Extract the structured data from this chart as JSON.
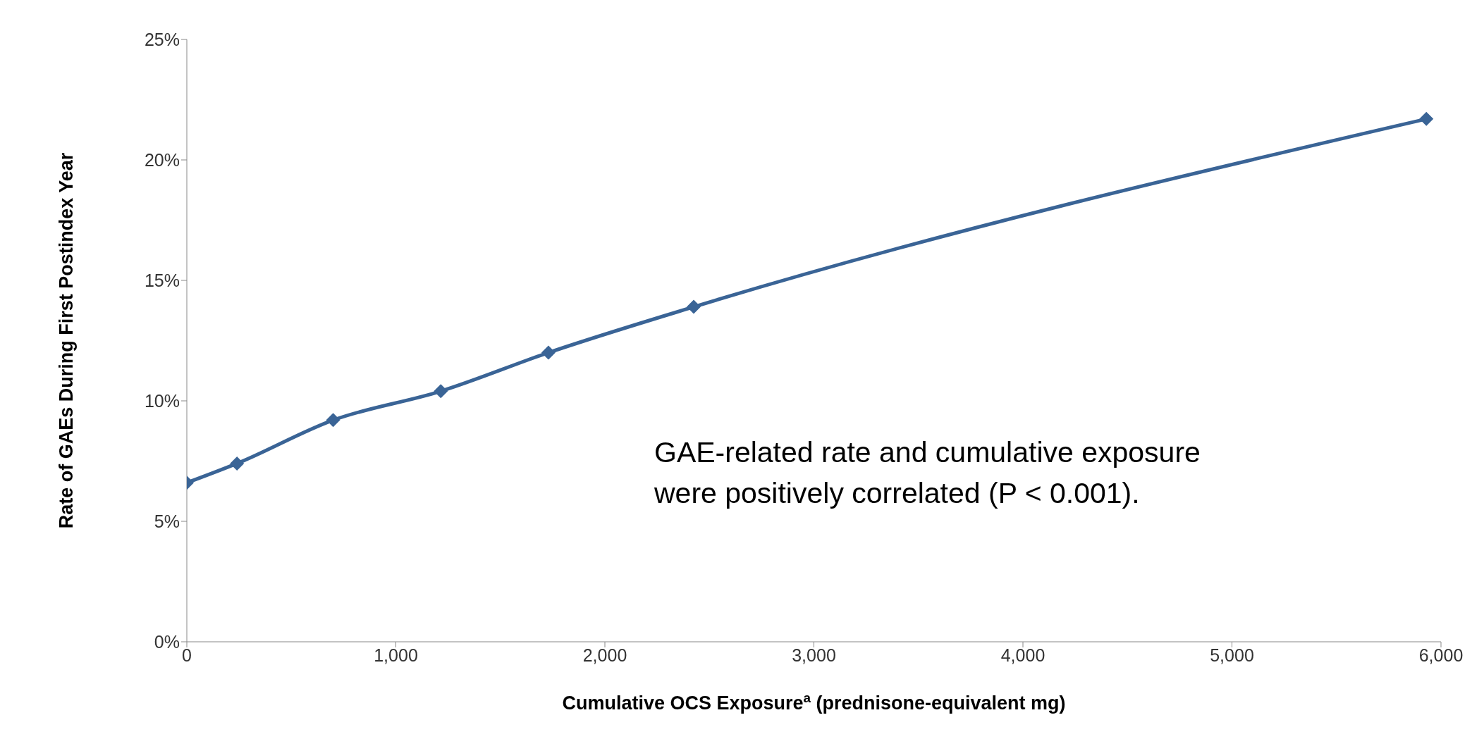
{
  "chart_data": {
    "type": "line",
    "xlabel": "Cumulative OCS Exposure$^{a}$ (prednisone-equivalent mg)",
    "ylabel": "Rate of GAEs During First Postindex Year",
    "x": [
      0,
      240,
      700,
      1215,
      1730,
      2425,
      5930
    ],
    "series": [
      {
        "color": "#3a6496",
        "values": [
          6.6,
          7.4,
          9.2,
          10.4,
          12.0,
          13.9,
          21.7
        ]
      }
    ],
    "xlim": [
      0,
      6000
    ],
    "xticks": [
      {
        "value": 0,
        "label": "0"
      },
      {
        "value": 1000,
        "label": "1,000"
      },
      {
        "value": 2000,
        "label": "2,000"
      },
      {
        "value": 3000,
        "label": "3,000"
      },
      {
        "value": 4000,
        "label": "4,000"
      },
      {
        "value": 5000,
        "label": "5,000"
      },
      {
        "value": 6000,
        "label": "6,000"
      }
    ],
    "ylim": [
      0,
      25
    ],
    "yticks": [
      {
        "value": 0,
        "label": "0%"
      },
      {
        "value": 5,
        "label": "5%"
      },
      {
        "value": 10,
        "label": "10%"
      },
      {
        "value": 15,
        "label": "15%"
      },
      {
        "value": 20,
        "label": "20%"
      },
      {
        "value": 25,
        "label": "25%"
      }
    ],
    "grid": false,
    "legend": false,
    "marker": "diamond",
    "line_style": "solid",
    "annotations": [
      "GAE-related rate and cumulative exposure were positively correlated (P < 0.001)."
    ]
  }
}
